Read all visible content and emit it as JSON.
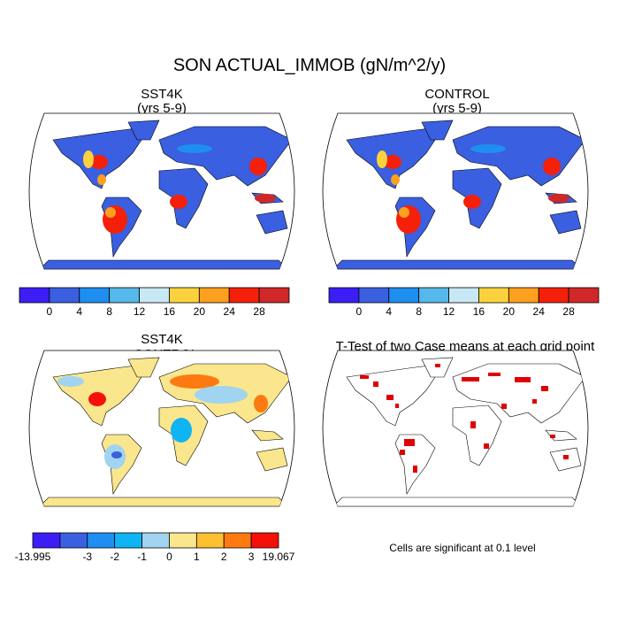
{
  "title": "SON ACTUAL_IMMOB (gN/m^2/y)",
  "panels": [
    {
      "title": "SST4K",
      "subtitle": "(yrs 5-9)"
    },
    {
      "title": "CONTROL",
      "subtitle": "(yrs 5-9)"
    },
    {
      "title": "SST4K",
      "subtitle": "- CONTROL"
    },
    {
      "title": "T-Test of two Case means at each grid point",
      "note": "Cells are significant at 0.1 level"
    }
  ],
  "colorbars": [
    {
      "colors": [
        "#3c1ef5",
        "#3a5fe0",
        "#1e8ff0",
        "#55b8ea",
        "#c8e8f5",
        "#fcd23c",
        "#fca01e",
        "#f5200a",
        "#d02828"
      ],
      "labels": [
        null,
        0,
        4,
        8,
        12,
        16,
        20,
        24,
        28,
        null
      ]
    },
    {
      "colors": [
        "#3c1ef5",
        "#3a5fe0",
        "#1e8ff0",
        "#55b8ea",
        "#c8e8f5",
        "#fcd23c",
        "#fca01e",
        "#f5200a",
        "#d02828"
      ],
      "labels": [
        null,
        0,
        4,
        8,
        12,
        16,
        20,
        24,
        28,
        null
      ]
    },
    {
      "colors": [
        "#3c1ef5",
        "#3a5fe0",
        "#1e8ff0",
        "#0fb4f5",
        "#a0d4f0",
        "#fae68c",
        "#fcc030",
        "#fc7a10",
        "#f5100a"
      ],
      "labels": [
        -13.995,
        null,
        -3,
        -2,
        -1,
        0,
        1,
        2,
        3,
        19.067
      ]
    }
  ]
}
